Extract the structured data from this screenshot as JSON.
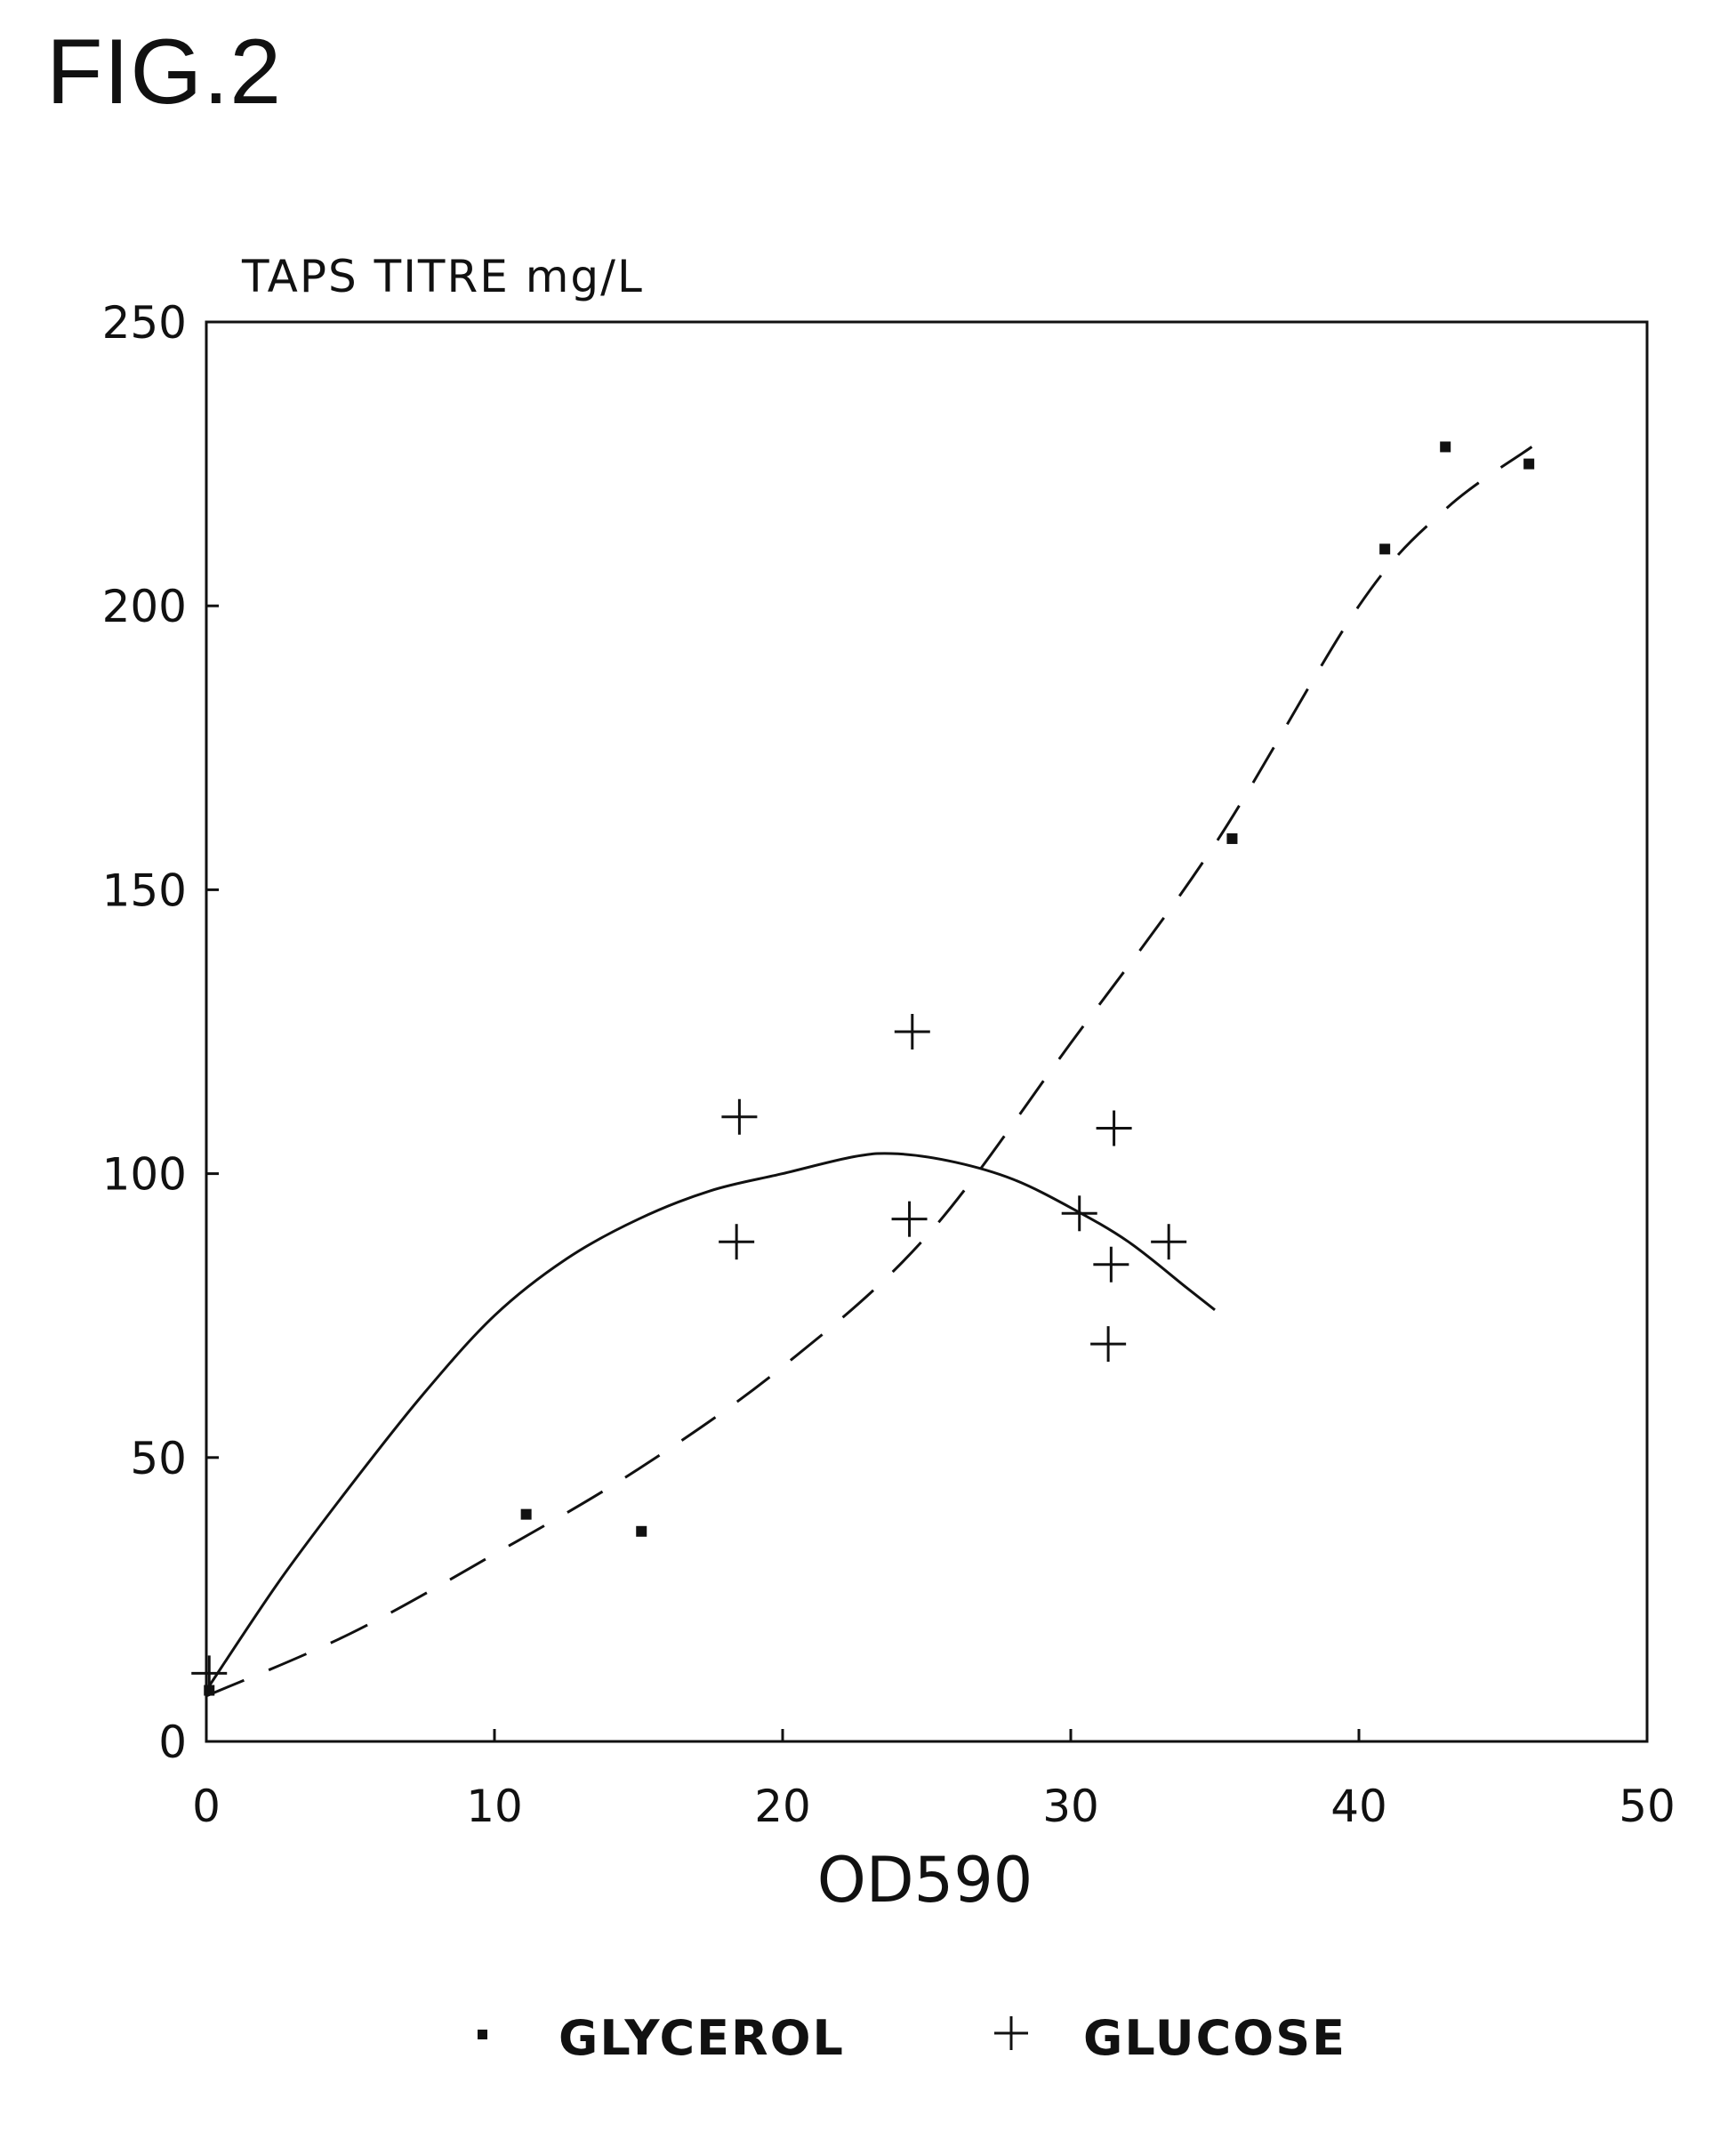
{
  "figure_label": "FIG.2",
  "chart_data": {
    "type": "scatter",
    "title": "",
    "ylabel": "TAPS TITRE mg/L",
    "xlabel": "OD590",
    "xlim": [
      0,
      50
    ],
    "ylim": [
      0,
      250
    ],
    "x_ticks": [
      "0",
      "10",
      "20",
      "30",
      "40",
      "50"
    ],
    "y_ticks": [
      "0",
      "50",
      "100",
      "150",
      "200",
      "250"
    ],
    "grid": false,
    "legend_position": "bottom",
    "series": [
      {
        "name": "GLYCEROL",
        "marker": "square-dot",
        "fit_line": "dashed",
        "points": [
          {
            "x": 0.1,
            "y": 9
          },
          {
            "x": 11.1,
            "y": 40
          },
          {
            "x": 15.1,
            "y": 37
          },
          {
            "x": 35.6,
            "y": 159
          },
          {
            "x": 40.9,
            "y": 210
          },
          {
            "x": 43.0,
            "y": 228
          },
          {
            "x": 45.9,
            "y": 225
          }
        ],
        "fit": [
          {
            "x": 0,
            "y": 8
          },
          {
            "x": 5,
            "y": 19
          },
          {
            "x": 10,
            "y": 33
          },
          {
            "x": 15,
            "y": 48
          },
          {
            "x": 20,
            "y": 66
          },
          {
            "x": 25,
            "y": 89
          },
          {
            "x": 30,
            "y": 123
          },
          {
            "x": 35,
            "y": 158
          },
          {
            "x": 40,
            "y": 200
          },
          {
            "x": 43,
            "y": 217
          },
          {
            "x": 46,
            "y": 228
          }
        ]
      },
      {
        "name": "GLUCOSE",
        "marker": "plus",
        "fit_line": "solid",
        "points": [
          {
            "x": 0.1,
            "y": 12
          },
          {
            "x": 18.5,
            "y": 110
          },
          {
            "x": 18.4,
            "y": 88
          },
          {
            "x": 24.5,
            "y": 125
          },
          {
            "x": 24.4,
            "y": 92
          },
          {
            "x": 30.3,
            "y": 93
          },
          {
            "x": 31.5,
            "y": 108
          },
          {
            "x": 31.4,
            "y": 84
          },
          {
            "x": 31.3,
            "y": 70
          },
          {
            "x": 33.4,
            "y": 88
          }
        ],
        "fit": [
          {
            "x": 0,
            "y": 9
          },
          {
            "x": 2.5,
            "y": 28
          },
          {
            "x": 5,
            "y": 45
          },
          {
            "x": 7.5,
            "y": 61
          },
          {
            "x": 10,
            "y": 75
          },
          {
            "x": 12.5,
            "y": 85
          },
          {
            "x": 15,
            "y": 92
          },
          {
            "x": 17.5,
            "y": 97
          },
          {
            "x": 20,
            "y": 100
          },
          {
            "x": 22.5,
            "y": 103
          },
          {
            "x": 24,
            "y": 103.5
          },
          {
            "x": 26,
            "y": 102
          },
          {
            "x": 28,
            "y": 99
          },
          {
            "x": 30,
            "y": 94
          },
          {
            "x": 32,
            "y": 88
          },
          {
            "x": 34,
            "y": 80
          },
          {
            "x": 35,
            "y": 76
          }
        ]
      }
    ]
  }
}
